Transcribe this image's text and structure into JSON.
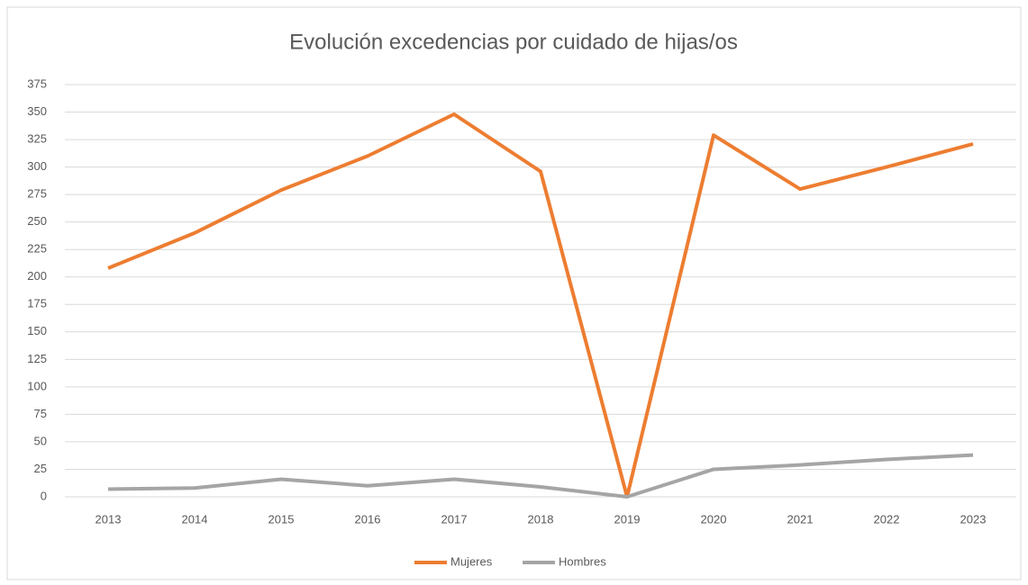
{
  "chart_data": {
    "type": "line",
    "title": "Evolución excedencias por cuidado de hijas/os",
    "categories": [
      "2013",
      "2014",
      "2015",
      "2016",
      "2017",
      "2018",
      "2019",
      "2020",
      "2021",
      "2022",
      "2023"
    ],
    "series": [
      {
        "name": "Mujeres",
        "color": "#ed7d31",
        "values": [
          208,
          240,
          279,
          310,
          348,
          296,
          0,
          329,
          280,
          300,
          321
        ]
      },
      {
        "name": "Hombres",
        "color": "#a5a5a5",
        "values": [
          7,
          8,
          16,
          10,
          16,
          9,
          0,
          25,
          29,
          34,
          38
        ]
      }
    ],
    "ylim": [
      0,
      375
    ],
    "yticks": [
      0,
      25,
      50,
      75,
      100,
      125,
      150,
      175,
      200,
      225,
      250,
      275,
      300,
      325,
      350,
      375
    ],
    "grid": true,
    "legend": "bottom"
  }
}
